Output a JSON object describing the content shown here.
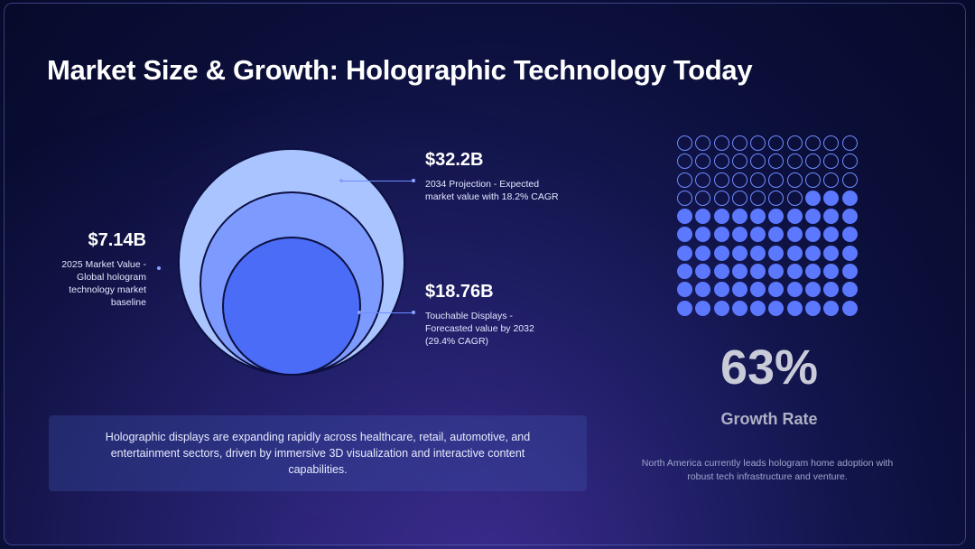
{
  "slide": {
    "title": "Market Size & Growth: Holographic Technology Today"
  },
  "circles": {
    "outer": {
      "value": "$32.2B",
      "description": "2034 Projection - Expected market value with 18.2% CAGR",
      "color": "#aac4ff"
    },
    "middle": {
      "value": "$7.14B",
      "description": "2025 Market Value - Global hologram technology market baseline",
      "color": "#7d9bff"
    },
    "inner": {
      "value": "$18.76B",
      "description": "Touchable Displays - Forecasted value by 2032 (29.4% CAGR)",
      "color": "#4a6cf7"
    }
  },
  "summary": {
    "text": "Holographic displays are expanding rapidly across healthcare, retail, automotive, and entertainment sectors, driven by immersive 3D visualization and interactive content capabilities."
  },
  "growth": {
    "percent_value": 63,
    "percent_label": "63%",
    "label": "Growth Rate",
    "note": "North America currently leads hologram home adoption with robust tech infrastructure and venture.",
    "filled_color": "#5b78ff",
    "empty_color": "#6f8cff"
  }
}
